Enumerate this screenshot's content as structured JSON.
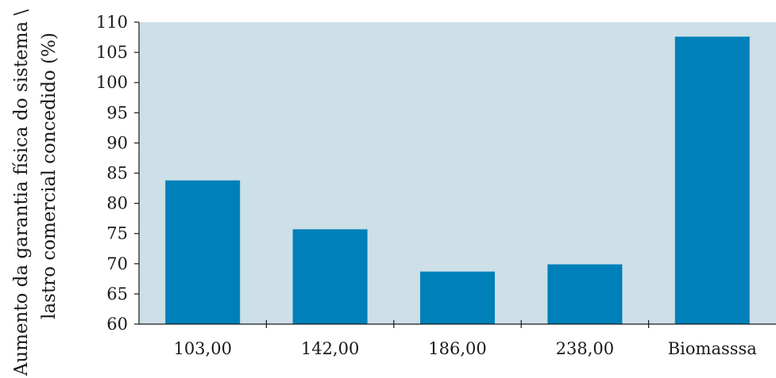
{
  "chart_data": {
    "type": "bar",
    "categories": [
      "103,00",
      "142,00",
      "186,00",
      "238,00",
      "Biomasssa"
    ],
    "values": [
      83.8,
      75.7,
      68.7,
      69.9,
      107.6
    ],
    "ylabel_line1": "Aumento da garantia física do sistema \\",
    "ylabel_line2": "lastro comercial concedido (%)",
    "ylim": [
      60,
      110
    ],
    "yticks": [
      60,
      65,
      70,
      75,
      80,
      85,
      90,
      95,
      100,
      105,
      110
    ],
    "grid": false,
    "colors": {
      "bar": "#0080b8",
      "plot_background": "#cddfe7",
      "axis": "#1a1a1a"
    }
  }
}
